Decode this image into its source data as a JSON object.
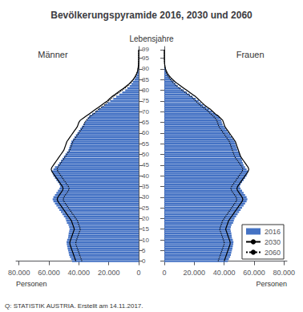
{
  "chart_data": [
    {
      "type": "bar",
      "orientation": "horizontal",
      "title": "Bevölkerungspyramide 2016, 2030 und 2060",
      "ylabel": "Lebensjahre",
      "xlabel": "Personen",
      "annotations": [
        "Männer"
      ],
      "source": "Q: STATISTIK AUSTRIA. Erstellt am 14.11.2017.",
      "grid": false,
      "xlim": [
        82000,
        0
      ],
      "xticks": [
        {
          "value": 80000,
          "label": "80.000"
        },
        {
          "value": 60000,
          "label": "60.000"
        },
        {
          "value": 40000,
          "label": "40.000"
        },
        {
          "value": 20000,
          "label": "20.000"
        },
        0
      ],
      "ylim": [
        -0.5,
        100.5
      ],
      "yticks": [
        0,
        5,
        10,
        15,
        20,
        25,
        30,
        35,
        40,
        45,
        50,
        55,
        60,
        65,
        70,
        75,
        80,
        85,
        90,
        95,
        99
      ],
      "y": [
        0,
        1,
        2,
        3,
        4,
        5,
        6,
        7,
        8,
        9,
        10,
        11,
        12,
        13,
        14,
        15,
        16,
        17,
        18,
        19,
        20,
        21,
        22,
        23,
        24,
        25,
        26,
        27,
        28,
        29,
        30,
        31,
        32,
        33,
        34,
        35,
        36,
        37,
        38,
        39,
        40,
        41,
        42,
        43,
        44,
        45,
        46,
        47,
        48,
        49,
        50,
        51,
        52,
        53,
        54,
        55,
        56,
        57,
        58,
        59,
        60,
        61,
        62,
        63,
        64,
        65,
        66,
        67,
        68,
        69,
        70,
        71,
        72,
        73,
        74,
        75,
        76,
        77,
        78,
        79,
        80,
        81,
        82,
        83,
        84,
        85,
        86,
        87,
        88,
        89,
        90,
        91,
        92,
        93,
        94,
        95,
        96,
        97,
        98,
        99
      ],
      "series": [
        {
          "name": "2016",
          "type": "bar",
          "color": "#4472C4",
          "values": [
            44500,
            45200,
            46000,
            46500,
            46800,
            47200,
            47500,
            47800,
            48100,
            48200,
            47800,
            47200,
            47000,
            46800,
            46500,
            46200,
            46500,
            47000,
            48000,
            48500,
            49000,
            50000,
            51000,
            52000,
            53000,
            54000,
            55000,
            56000,
            57000,
            57500,
            57000,
            56000,
            55000,
            54000,
            53000,
            52500,
            53000,
            54000,
            55000,
            56000,
            57000,
            57500,
            58000,
            57000,
            56000,
            54000,
            53000,
            52000,
            51000,
            50000,
            49000,
            48000,
            47000,
            46500,
            46000,
            45500,
            45000,
            44000,
            43000,
            42000,
            41000,
            40000,
            39000,
            38000,
            37000,
            36000,
            35000,
            34000,
            33000,
            31000,
            29000,
            27000,
            25000,
            23000,
            21000,
            19000,
            17000,
            15000,
            13000,
            11000,
            9000,
            7500,
            6000,
            4800,
            3800,
            2800,
            2000,
            1400,
            900,
            600,
            350,
            200,
            120,
            70,
            35,
            18,
            8,
            4,
            2,
            1
          ]
        },
        {
          "name": "2030",
          "type": "line",
          "color": "#000000",
          "line_style": "solid",
          "values": [
            42000,
            42500,
            43000,
            43500,
            44000,
            44500,
            45000,
            45500,
            46000,
            46000,
            45500,
            45000,
            44500,
            44000,
            43500,
            43000,
            43500,
            44000,
            44500,
            45000,
            46000,
            47000,
            48000,
            49000,
            50000,
            51000,
            52000,
            53000,
            54000,
            54500,
            54000,
            53000,
            52000,
            51000,
            50500,
            51000,
            52000,
            53000,
            54000,
            55000,
            56000,
            57000,
            58000,
            58500,
            58000,
            57000,
            56000,
            55000,
            54000,
            53000,
            52000,
            51000,
            50000,
            49500,
            49000,
            48500,
            48000,
            47000,
            46000,
            45000,
            44000,
            43000,
            42000,
            41000,
            40500,
            40000,
            39000,
            37000,
            35000,
            33000,
            31000,
            29000,
            27000,
            25000,
            23000,
            21000,
            19500,
            18000,
            16000,
            14000,
            12000,
            10000,
            8200,
            6500,
            5000,
            3800,
            2700,
            1900,
            1200,
            750,
            430,
            240,
            130,
            65,
            30,
            14,
            6,
            3,
            1,
            0
          ]
        },
        {
          "name": "2060",
          "type": "line",
          "color": "#000000",
          "line_style": "dotted",
          "values": [
            38000,
            38500,
            39000,
            39500,
            40000,
            40500,
            41000,
            41500,
            42000,
            42000,
            41500,
            41000,
            40500,
            40000,
            39500,
            39000,
            39500,
            40000,
            40500,
            41000,
            42000,
            43000,
            44000,
            45000,
            46000,
            47000,
            48000,
            49000,
            50000,
            50500,
            50000,
            49000,
            48000,
            47000,
            46500,
            47000,
            48000,
            49000,
            50000,
            51000,
            52000,
            53000,
            54000,
            54500,
            54000,
            53000,
            52000,
            51000,
            50000,
            49000,
            48000,
            47000,
            46000,
            45500,
            45000,
            44500,
            44000,
            43000,
            42000,
            41000,
            40000,
            39000,
            38000,
            37000,
            36500,
            36000,
            35000,
            33500,
            32000,
            30000,
            28500,
            27000,
            25000,
            23000,
            21500,
            20000,
            18500,
            17000,
            15000,
            13000,
            11000,
            9200,
            7500,
            6000,
            4700,
            3600,
            2600,
            1800,
            1200,
            760,
            460,
            265,
            145,
            74,
            35,
            16,
            7,
            3,
            1,
            0
          ]
        }
      ]
    },
    {
      "type": "bar",
      "orientation": "horizontal",
      "xlabel": "Personen",
      "annotations": [
        "Frauen"
      ],
      "grid": false,
      "legend": "lower right",
      "tick_labels": "x",
      "xlim": [
        0,
        82000
      ],
      "xticks": [
        0,
        {
          "value": 20000,
          "label": "20.000"
        },
        {
          "value": 40000,
          "label": "40.000"
        },
        {
          "value": 60000,
          "label": "60.000"
        },
        {
          "value": 80000,
          "label": "80.000"
        }
      ],
      "ylim": [
        -0.5,
        100.5
      ],
      "yticks": [
        0,
        5,
        10,
        15,
        20,
        25,
        30,
        35,
        40,
        45,
        50,
        55,
        60,
        65,
        70,
        75,
        80,
        85,
        90,
        95,
        99
      ],
      "y": [
        0,
        1,
        2,
        3,
        4,
        5,
        6,
        7,
        8,
        9,
        10,
        11,
        12,
        13,
        14,
        15,
        16,
        17,
        18,
        19,
        20,
        21,
        22,
        23,
        24,
        25,
        26,
        27,
        28,
        29,
        30,
        31,
        32,
        33,
        34,
        35,
        36,
        37,
        38,
        39,
        40,
        41,
        42,
        43,
        44,
        45,
        46,
        47,
        48,
        49,
        50,
        51,
        52,
        53,
        54,
        55,
        56,
        57,
        58,
        59,
        60,
        61,
        62,
        63,
        64,
        65,
        66,
        67,
        68,
        69,
        70,
        71,
        72,
        73,
        74,
        75,
        76,
        77,
        78,
        79,
        80,
        81,
        82,
        83,
        84,
        85,
        86,
        87,
        88,
        89,
        90,
        91,
        92,
        93,
        94,
        95,
        96,
        97,
        98,
        99
      ],
      "series": [
        {
          "name": "2016",
          "type": "bar",
          "color": "#4472C4",
          "values": [
            42500,
            43200,
            44000,
            44500,
            44800,
            45200,
            45500,
            45800,
            46100,
            46200,
            45800,
            45200,
            45000,
            44800,
            44500,
            44200,
            44500,
            45000,
            46000,
            46500,
            47000,
            48000,
            49000,
            50000,
            51000,
            52000,
            53000,
            54000,
            55000,
            55500,
            55000,
            54000,
            53000,
            52000,
            51000,
            50500,
            51000,
            52000,
            53000,
            54000,
            55000,
            55500,
            56000,
            55000,
            54000,
            53000,
            52500,
            52000,
            51500,
            51000,
            50500,
            50000,
            49000,
            48500,
            48000,
            47500,
            47000,
            46000,
            45000,
            44000,
            43000,
            42000,
            41000,
            40000,
            39000,
            38500,
            38000,
            37000,
            36000,
            34000,
            32000,
            30000,
            28000,
            26000,
            24500,
            23000,
            21000,
            19000,
            17000,
            15000,
            13000,
            11000,
            9000,
            7500,
            6200,
            4800,
            3600,
            2600,
            1800,
            1200,
            750,
            450,
            280,
            160,
            90,
            45,
            20,
            10,
            4,
            2
          ]
        },
        {
          "name": "2030",
          "type": "line",
          "color": "#000000",
          "line_style": "solid",
          "values": [
            40000,
            40500,
            41000,
            41500,
            42000,
            42500,
            43000,
            43500,
            44000,
            44000,
            43500,
            43000,
            42500,
            42000,
            41500,
            41000,
            41500,
            42000,
            42500,
            43000,
            44000,
            45000,
            46000,
            47000,
            48000,
            49000,
            50000,
            51000,
            52000,
            52500,
            52000,
            51000,
            50000,
            49000,
            48500,
            49000,
            50000,
            51000,
            52000,
            53000,
            54000,
            55000,
            56000,
            56500,
            56000,
            55000,
            54000,
            53000,
            52000,
            51000,
            50500,
            50000,
            49500,
            49000,
            48500,
            48000,
            47500,
            46500,
            45500,
            44500,
            43500,
            42500,
            41500,
            40500,
            40000,
            39500,
            39000,
            37500,
            36000,
            34000,
            32500,
            31000,
            29000,
            27000,
            25500,
            24000,
            22500,
            21000,
            19000,
            17000,
            15000,
            13000,
            11000,
            9000,
            7200,
            5600,
            4200,
            3000,
            2100,
            1350,
            820,
            480,
            270,
            140,
            68,
            30,
            12,
            5,
            2,
            1
          ]
        },
        {
          "name": "2060",
          "type": "line",
          "color": "#000000",
          "line_style": "dotted",
          "values": [
            36000,
            36500,
            37000,
            37500,
            38000,
            38500,
            39000,
            39500,
            40000,
            40000,
            39500,
            39000,
            38500,
            38000,
            37500,
            37000,
            37500,
            38000,
            38500,
            39000,
            40000,
            41000,
            42000,
            43000,
            44000,
            45000,
            46000,
            47000,
            48000,
            48500,
            48000,
            47000,
            46000,
            45000,
            44500,
            45000,
            46000,
            47000,
            48000,
            49000,
            50000,
            51000,
            52000,
            52500,
            52000,
            51000,
            50000,
            49000,
            48000,
            47000,
            46500,
            46000,
            45500,
            45000,
            44500,
            44000,
            43500,
            42500,
            41500,
            40500,
            39500,
            38500,
            37500,
            36500,
            36000,
            35500,
            35000,
            34000,
            32500,
            31000,
            29500,
            28000,
            26000,
            24000,
            22500,
            21000,
            19500,
            18000,
            16000,
            14000,
            12000,
            10000,
            8200,
            6700,
            5400,
            4200,
            3100,
            2200,
            1500,
            980,
            610,
            370,
            210,
            110,
            55,
            25,
            10,
            4,
            2,
            1
          ]
        }
      ]
    }
  ]
}
